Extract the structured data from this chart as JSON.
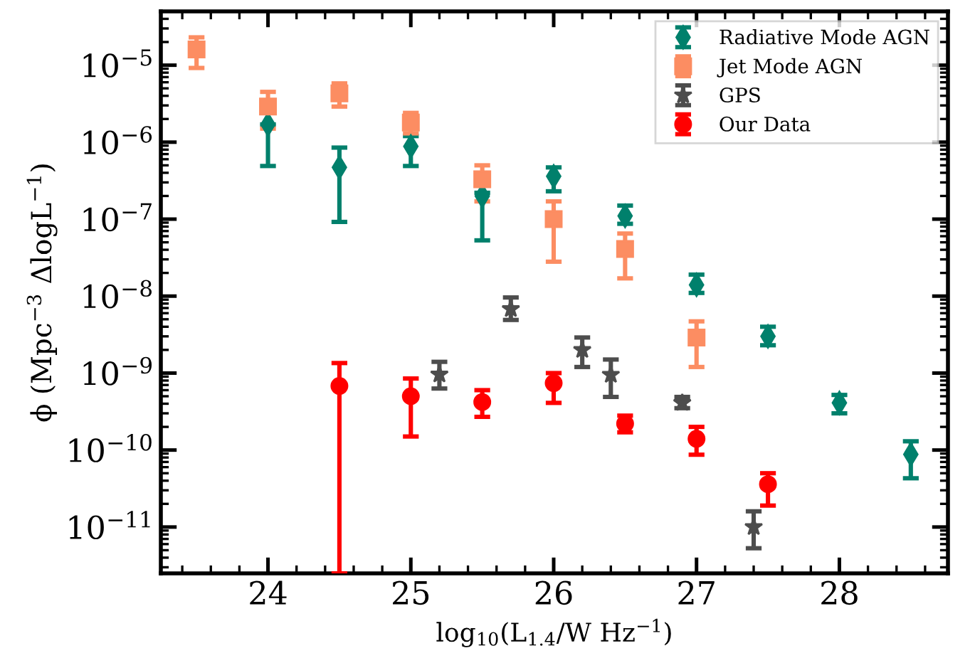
{
  "chart_data": {
    "type": "scatter",
    "xlabel": "log$_{10}$(L$_{1.4}$/W Hz$^{−1}$)",
    "ylabel": "ϕ (Mpc$^{−3}$ ΔlogL$^{−1}$)",
    "log": "y",
    "legend": "top right",
    "grid": false,
    "xlim": [
      23.25,
      28.76
    ],
    "xticks": [
      24,
      25,
      26,
      27,
      28
    ],
    "ylim": [
      2.5e-12,
      5e-05
    ],
    "yticks": [
      {
        "value": 1e-11,
        "label": "10$^{−11}$"
      },
      {
        "value": 1e-10,
        "label": "10$^{−10}$"
      },
      {
        "value": 1e-09,
        "label": "10$^{−9}$"
      },
      {
        "value": 1e-08,
        "label": "10$^{−8}$"
      },
      {
        "value": 1e-07,
        "label": "10$^{−7}$"
      },
      {
        "value": 1e-06,
        "label": "10$^{−6}$"
      },
      {
        "value": 1e-05,
        "label": "10$^{−5}$"
      }
    ],
    "series": [
      {
        "name": "Radiative Mode AGN",
        "color": "#00806c",
        "marker": "diamond",
        "x": [
          24,
          24.5,
          25,
          25.5,
          26,
          26.5,
          27,
          27.5,
          28,
          28.5
        ],
        "values": [
          1.7e-06,
          4.7e-07,
          8.8e-07,
          2e-07,
          3.6e-07,
          1.1e-07,
          1.4e-08,
          3e-09,
          4.1e-10,
          8.8e-11
        ],
        "errors": [
          [
            4.9e-07,
            1.7e-06
          ],
          [
            9.2e-08,
            8.5e-07
          ],
          [
            4.9e-07,
            1.2e-06
          ],
          [
            5.3e-08,
            2.2e-07
          ],
          [
            2.3e-07,
            4.7e-07
          ],
          [
            8.7e-08,
            1.5e-07
          ],
          [
            1.1e-08,
            1.9e-08
          ],
          [
            2.3e-09,
            4e-09
          ],
          [
            3e-10,
            5.2e-10
          ],
          [
            4.3e-11,
            1.3e-10
          ]
        ]
      },
      {
        "name": "Jet Mode AGN",
        "color": "#fc8d62",
        "marker": "square",
        "x": [
          23.5,
          24,
          24.5,
          25,
          25.5,
          26,
          26.5,
          27
        ],
        "values": [
          1.6e-05,
          2.9e-06,
          4.3e-06,
          1.8e-06,
          3.3e-07,
          1e-07,
          4.1e-08,
          2.9e-09
        ],
        "errors": [
          [
            9.2e-06,
            2.3e-05
          ],
          [
            1.5e-06,
            4.5e-06
          ],
          [
            2.9e-06,
            5.8e-06
          ],
          [
            1.3e-06,
            2.4e-06
          ],
          [
            1.7e-07,
            5e-07
          ],
          [
            2.8e-08,
            1.7e-07
          ],
          [
            1.7e-08,
            6.5e-08
          ],
          [
            1.2e-09,
            4.7e-09
          ]
        ]
      },
      {
        "name": "GPS",
        "color": "#4d4d4d",
        "marker": "star",
        "x": [
          25.2,
          25.7,
          26.2,
          26.4,
          26.9,
          27.4
        ],
        "values": [
          9.6e-10,
          6.8e-09,
          2e-09,
          9.5e-10,
          4.1e-10,
          1e-11
        ],
        "errors": [
          [
            6.3e-10,
            1.4e-09
          ],
          [
            4.9e-09,
            9.6e-09
          ],
          [
            1.2e-09,
            2.9e-09
          ],
          [
            4.9e-10,
            1.5e-09
          ],
          [
            3.5e-10,
            4.9e-10
          ],
          [
            5.3e-12,
            1.6e-11
          ]
        ]
      },
      {
        "name": "Our Data",
        "color": "#ff0000",
        "marker": "circle",
        "x": [
          24.5,
          25,
          25.5,
          26,
          26.5,
          27,
          27.5
        ],
        "values": [
          6.8e-10,
          5e-10,
          4.2e-10,
          7.4e-10,
          2.2e-10,
          1.4e-10,
          3.6e-11
        ],
        "errors": [
          [
            2.5e-12,
            1.35e-09
          ],
          [
            1.5e-10,
            8.5e-10
          ],
          [
            2.7e-10,
            6e-10
          ],
          [
            4.1e-10,
            1e-09
          ],
          [
            1.7e-10,
            2.8e-10
          ],
          [
            8.7e-11,
            2e-10
          ],
          [
            1.9e-11,
            5e-11
          ]
        ]
      }
    ]
  }
}
